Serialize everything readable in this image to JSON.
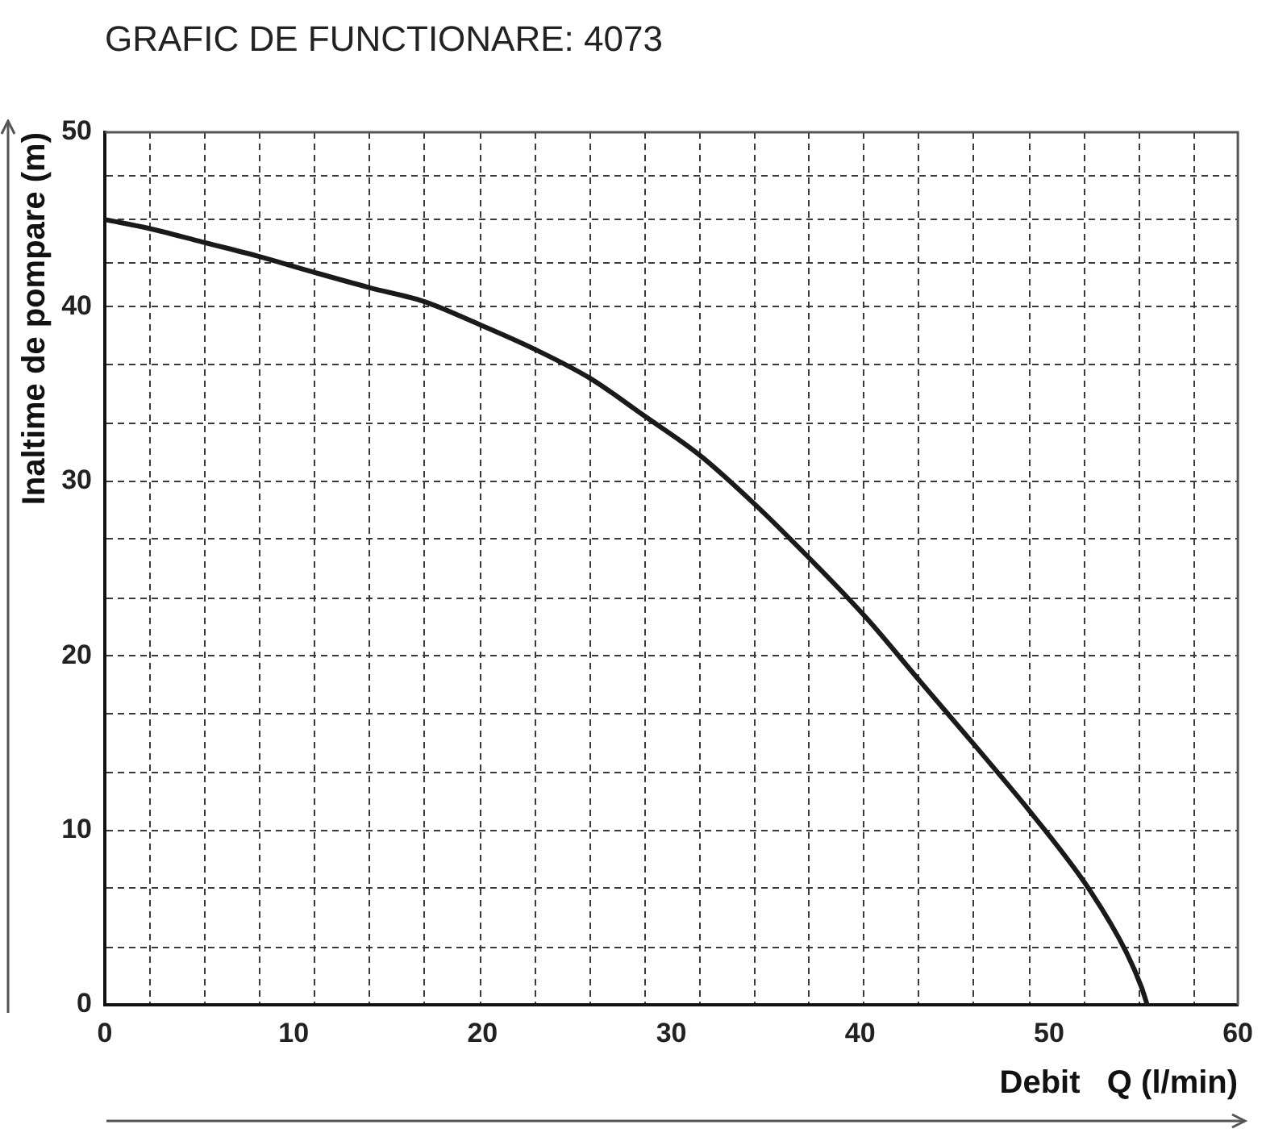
{
  "chart_data": {
    "type": "line",
    "title": "GRAFIC DE FUNCTIONARE: 4073",
    "xlabel": "Debit   Q (l/min)",
    "ylabel": "Inaltime de pompare (m)",
    "x": [
      0,
      2.3,
      5.2,
      8.1,
      11.0,
      14.0,
      16.9,
      19.8,
      22.7,
      25.7,
      28.5,
      31.5,
      34.5,
      37.3,
      40.3,
      43.2,
      46.2,
      49.2,
      52.2,
      54.1,
      54.9,
      55.2
    ],
    "series": [
      {
        "color": "#1a1a1a",
        "values": [
          45,
          44.5,
          43.7,
          42.9,
          42.0,
          41.1,
          40.3,
          39.0,
          37.6,
          35.9,
          33.8,
          31.5,
          28.6,
          25.6,
          22.2,
          18.5,
          14.7,
          10.8,
          6.5,
          3.0,
          1.0,
          0
        ]
      }
    ],
    "xlim": [
      0,
      60
    ],
    "ylim": [
      0,
      50
    ],
    "xticks": [
      0,
      {
        "value": 2.4,
        "label": null
      },
      {
        "value": 5.3,
        "label": null
      },
      {
        "value": 8.2,
        "label": null
      },
      10,
      {
        "value": 11.1,
        "label": null
      },
      {
        "value": 14.0,
        "label": null
      },
      {
        "value": 16.9,
        "label": null
      },
      {
        "value": 19.9,
        "label": null
      },
      20,
      {
        "value": 22.8,
        "label": null
      },
      {
        "value": 25.7,
        "label": null
      },
      {
        "value": 28.6,
        "label": null
      },
      30,
      {
        "value": 31.5,
        "label": null
      },
      {
        "value": 34.4,
        "label": null
      },
      {
        "value": 37.3,
        "label": null
      },
      40,
      {
        "value": 40.2,
        "label": null
      },
      {
        "value": 43.1,
        "label": null
      },
      {
        "value": 46.0,
        "label": null
      },
      {
        "value": 49.0,
        "label": null
      },
      50,
      {
        "value": 51.9,
        "label": null
      },
      {
        "value": 54.8,
        "label": null
      },
      {
        "value": 57.7,
        "label": null
      },
      60
    ],
    "yticks": [
      0,
      {
        "value": 3.3,
        "label": null
      },
      {
        "value": 6.7,
        "label": null
      },
      10,
      {
        "value": 13.3,
        "label": null
      },
      {
        "value": 16.7,
        "label": null
      },
      20,
      {
        "value": 23.3,
        "label": null
      },
      {
        "value": 26.7,
        "label": null
      },
      30,
      {
        "value": 33.3,
        "label": null
      },
      {
        "value": 36.7,
        "label": null
      },
      40,
      {
        "value": 42.5,
        "label": null
      },
      {
        "value": 45,
        "label": null
      },
      {
        "value": 47.5,
        "label": null
      },
      50
    ],
    "grid": true,
    "legend": false,
    "marker": "none",
    "line_style": "solid"
  }
}
